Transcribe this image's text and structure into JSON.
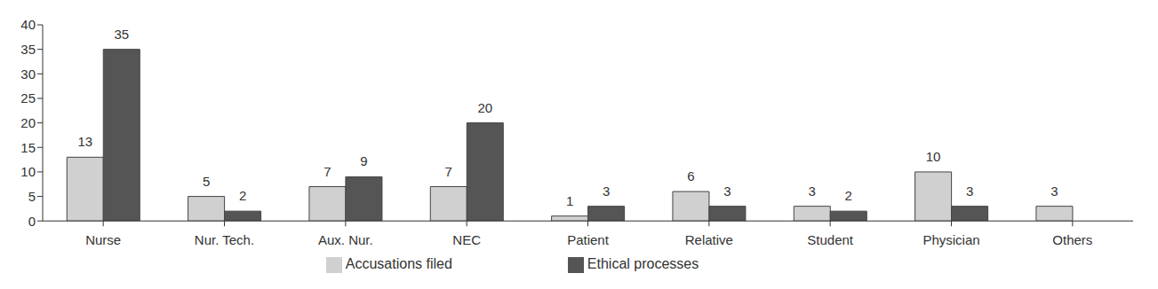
{
  "chart_data": {
    "type": "bar",
    "categories": [
      "Nurse",
      "Nur. Tech.",
      "Aux. Nur.",
      "NEC",
      "Patient",
      "Relative",
      "Student",
      "Physician",
      "Others"
    ],
    "series": [
      {
        "name": "Accusations filed",
        "color": "#d0d0d0",
        "values": [
          13,
          5,
          7,
          7,
          1,
          6,
          3,
          10,
          3
        ]
      },
      {
        "name": "Ethical processes",
        "color": "#555555",
        "values": [
          35,
          2,
          9,
          20,
          3,
          3,
          2,
          3,
          0
        ]
      }
    ],
    "ylim": [
      0,
      40
    ],
    "yticks": [
      0,
      5,
      10,
      15,
      20,
      25,
      30,
      35,
      40
    ],
    "grid": false,
    "data_labels": true,
    "legend": "bottom"
  }
}
